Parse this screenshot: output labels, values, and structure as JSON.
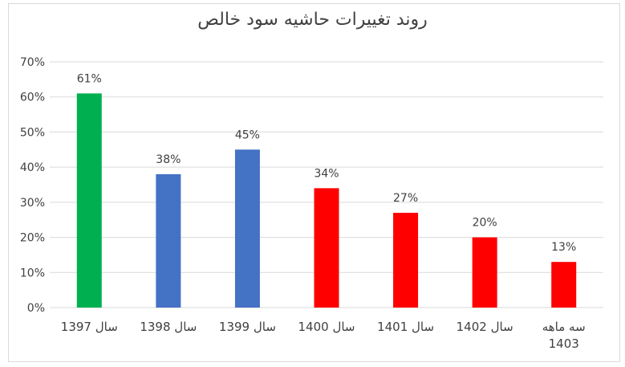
{
  "chart_data": {
    "type": "bar",
    "title": "روند تغییرات حاشیه سود خالص",
    "categories": [
      "سال 1397",
      "سال 1398",
      "سال 1399",
      "سال 1400",
      "سال 1401",
      "سال 1402",
      "سه ماهه 1403"
    ],
    "values": [
      61,
      38,
      45,
      34,
      27,
      20,
      13
    ],
    "data_labels": [
      "61%",
      "38%",
      "45%",
      "34%",
      "27%",
      "20%",
      "13%"
    ],
    "bar_colors": [
      "#00b050",
      "#4472c4",
      "#4472c4",
      "#ff0000",
      "#ff0000",
      "#ff0000",
      "#ff0000"
    ],
    "ylim": [
      0,
      70
    ],
    "yticks": [
      0,
      10,
      20,
      30,
      40,
      50,
      60,
      70
    ],
    "ytick_labels": [
      "0%",
      "10%",
      "20%",
      "30%",
      "40%",
      "50%",
      "60%",
      "70%"
    ],
    "xlabel": "",
    "ylabel": "",
    "grid": true,
    "legend": "none"
  }
}
